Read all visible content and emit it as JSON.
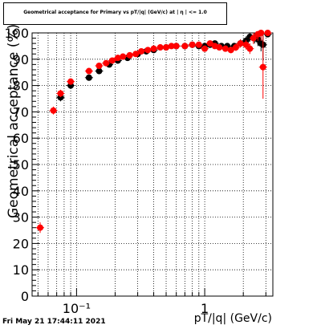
{
  "chart_data": {
    "type": "scatter",
    "title": "Geometrical acceptance for Primary vs pT/|q| (GeV/c) at | η | <= 1.0",
    "xlabel": "pT/|q| (GeV/c)",
    "ylabel": "Geometrical acceptance (%)",
    "xscale": "log",
    "xlim": [
      0.045,
      3.4
    ],
    "ylim": [
      0,
      100
    ],
    "x_ticks": [
      {
        "value": 0.1,
        "label": "10⁻¹"
      },
      {
        "value": 1,
        "label": "1"
      }
    ],
    "y_ticks": [
      0,
      10,
      20,
      30,
      40,
      50,
      60,
      70,
      80,
      90,
      100
    ],
    "grid": true,
    "series": [
      {
        "color": "#000000",
        "points": [
          [
            0.075,
            75.5
          ],
          [
            0.09,
            80.0
          ],
          [
            0.125,
            83.0
          ],
          [
            0.15,
            85.5
          ],
          [
            0.18,
            88.0
          ],
          [
            0.21,
            89.5
          ],
          [
            0.25,
            90.5
          ],
          [
            0.3,
            92.0
          ],
          [
            0.35,
            93.0
          ],
          [
            0.4,
            93.5
          ],
          [
            0.5,
            94.5
          ],
          [
            0.6,
            95.0
          ],
          [
            0.7,
            95.0
          ],
          [
            0.8,
            95.5
          ],
          [
            0.9,
            95.0
          ],
          [
            1.0,
            95.0
          ],
          [
            1.1,
            95.5
          ],
          [
            1.2,
            96.0
          ],
          [
            1.35,
            95.0
          ],
          [
            1.5,
            95.0
          ],
          [
            1.7,
            95.0
          ],
          [
            1.9,
            96.0
          ],
          [
            2.1,
            97.0
          ],
          [
            2.25,
            98.5
          ],
          [
            2.45,
            98.0
          ],
          [
            2.6,
            97.5
          ],
          [
            2.75,
            96.0
          ],
          [
            2.85,
            95.5
          ],
          [
            3.1,
            99.5
          ]
        ],
        "errors": [
          1.5,
          1.2,
          1.0,
          0.8,
          0.7,
          0.6,
          0.5,
          0.5,
          0.5,
          0.5,
          0.5,
          0.5,
          0.5,
          0.6,
          0.6,
          0.7,
          0.8,
          0.9,
          1.0,
          1.1,
          1.2,
          1.4,
          1.6,
          1.8,
          2.0,
          2.5,
          3.0,
          6.0,
          1.0
        ]
      },
      {
        "color": "#ff0000",
        "points": [
          [
            0.052,
            26.0
          ],
          [
            0.066,
            70.5
          ],
          [
            0.075,
            77.0
          ],
          [
            0.09,
            81.5
          ],
          [
            0.125,
            85.5
          ],
          [
            0.15,
            87.5
          ],
          [
            0.17,
            88.5
          ],
          [
            0.19,
            89.5
          ],
          [
            0.21,
            90.5
          ],
          [
            0.23,
            91.0
          ],
          [
            0.26,
            91.5
          ],
          [
            0.29,
            92.0
          ],
          [
            0.32,
            93.0
          ],
          [
            0.36,
            93.5
          ],
          [
            0.4,
            94.0
          ],
          [
            0.45,
            94.5
          ],
          [
            0.5,
            94.5
          ],
          [
            0.55,
            95.0
          ],
          [
            0.6,
            95.0
          ],
          [
            0.7,
            95.0
          ],
          [
            0.8,
            95.5
          ],
          [
            0.9,
            95.5
          ],
          [
            1.0,
            94.0
          ],
          [
            1.1,
            96.0
          ],
          [
            1.2,
            95.0
          ],
          [
            1.3,
            94.5
          ],
          [
            1.45,
            94.0
          ],
          [
            1.6,
            93.5
          ],
          [
            1.75,
            94.5
          ],
          [
            1.9,
            96.0
          ],
          [
            2.1,
            95.5
          ],
          [
            2.25,
            94.0
          ],
          [
            2.4,
            98.0
          ],
          [
            2.6,
            99.5
          ],
          [
            2.75,
            100.0
          ],
          [
            2.85,
            87.0
          ],
          [
            3.1,
            100.0
          ]
        ],
        "errors": [
          2.0,
          1.5,
          1.4,
          1.2,
          1.0,
          0.9,
          0.8,
          0.7,
          0.7,
          0.6,
          0.6,
          0.6,
          0.5,
          0.5,
          0.5,
          0.5,
          0.5,
          0.5,
          0.5,
          0.5,
          0.6,
          0.6,
          0.7,
          0.8,
          0.9,
          1.0,
          1.1,
          1.2,
          1.4,
          1.6,
          1.8,
          2.0,
          2.2,
          2.5,
          3.0,
          12.0,
          1.0
        ]
      }
    ]
  },
  "footer": {
    "timestamp": "Fri May 21 17:44:11 2021"
  }
}
